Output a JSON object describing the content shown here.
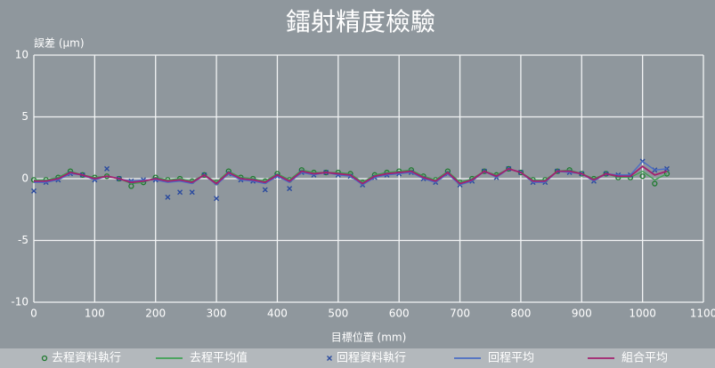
{
  "chart_data": {
    "type": "line",
    "title": "鐳射精度檢驗",
    "y_label": "誤差 (μm)",
    "x_label": "目標位置 (mm)",
    "x": [
      0,
      20,
      40,
      60,
      80,
      100,
      120,
      140,
      160,
      180,
      200,
      220,
      240,
      260,
      280,
      300,
      320,
      340,
      360,
      380,
      400,
      420,
      440,
      460,
      480,
      500,
      520,
      540,
      560,
      580,
      600,
      620,
      640,
      660,
      680,
      700,
      720,
      740,
      760,
      780,
      800,
      820,
      840,
      860,
      880,
      900,
      920,
      940,
      960,
      980,
      1000,
      1020,
      1040
    ],
    "series": [
      {
        "name": "去程資料執行",
        "color": "#1f7a2e",
        "marker": "o",
        "values": [
          -0.1,
          -0.1,
          0.1,
          0.6,
          0.3,
          0.1,
          0.2,
          0,
          -0.6,
          -0.3,
          0.1,
          -0.1,
          0,
          -0.2,
          0.3,
          -0.3,
          0.6,
          0.1,
          0,
          -0.2,
          0.4,
          -0.1,
          0.7,
          0.5,
          0.5,
          0.5,
          0.4,
          -0.3,
          0.3,
          0.5,
          0.6,
          0.7,
          0.2,
          -0.1,
          0.6,
          -0.3,
          0,
          0.6,
          0.3,
          0.8,
          0.5,
          -0.1,
          -0.1,
          0.6,
          0.7,
          0.4,
          0,
          0.4,
          0.1,
          0.1,
          0.2,
          -0.4,
          0.4
        ]
      },
      {
        "name": "去程平均值",
        "color": "#3ea152",
        "marker": "none",
        "values": [
          -0.1,
          -0.1,
          0.1,
          0.6,
          0.3,
          0.1,
          0.2,
          0,
          -0.4,
          -0.3,
          0.1,
          -0.1,
          0,
          -0.2,
          0.3,
          -0.3,
          0.6,
          0.1,
          0,
          -0.2,
          0.4,
          -0.1,
          0.7,
          0.5,
          0.5,
          0.5,
          0.4,
          -0.3,
          0.3,
          0.5,
          0.6,
          0.7,
          0.2,
          -0.1,
          0.6,
          -0.3,
          0,
          0.6,
          0.3,
          0.8,
          0.5,
          -0.1,
          -0.1,
          0.6,
          0.7,
          0.4,
          0,
          0.4,
          0.1,
          0.1,
          0.6,
          -0.1,
          0.4
        ]
      },
      {
        "name": "回程資料執行",
        "color": "#2a4a9e",
        "marker": "x",
        "values": [
          -1,
          -0.3,
          -0.1,
          0.4,
          0.3,
          -0.1,
          0.8,
          0,
          -0.2,
          -0.1,
          -0.1,
          -1.5,
          -1.1,
          -1.1,
          0.3,
          -1.6,
          0.4,
          -0.1,
          -0.2,
          -0.9,
          0.2,
          -0.8,
          0.5,
          0.3,
          0.5,
          0.3,
          0.2,
          -0.5,
          0.1,
          0.3,
          0.4,
          0.5,
          0,
          -0.3,
          0.4,
          -0.5,
          -0.2,
          0.6,
          0.1,
          0.8,
          0.5,
          -0.3,
          -0.3,
          0.6,
          0.5,
          0.4,
          -0.2,
          0.4,
          0.3,
          0.3,
          1.4,
          0.7,
          0.8
        ]
      },
      {
        "name": "回程平均",
        "color": "#4a6cc4",
        "marker": "none",
        "values": [
          -0.3,
          -0.3,
          -0.1,
          0.4,
          0.3,
          -0.1,
          0.2,
          0,
          -0.2,
          -0.1,
          -0.1,
          -0.3,
          -0.2,
          -0.4,
          0.3,
          -0.5,
          0.4,
          -0.1,
          -0.2,
          -0.4,
          0.2,
          -0.3,
          0.5,
          0.3,
          0.5,
          0.3,
          0.2,
          -0.5,
          0.1,
          0.3,
          0.4,
          0.5,
          0,
          -0.3,
          0.4,
          -0.5,
          -0.2,
          0.6,
          0.1,
          0.8,
          0.5,
          -0.3,
          -0.3,
          0.6,
          0.5,
          0.4,
          -0.2,
          0.4,
          0.3,
          0.3,
          1.4,
          0.7,
          0.8
        ]
      },
      {
        "name": "組合平均",
        "color": "#a3206f",
        "marker": "none",
        "values": [
          -0.2,
          -0.2,
          0,
          0.5,
          0.3,
          0,
          0.2,
          0,
          -0.3,
          -0.2,
          0,
          -0.2,
          -0.1,
          -0.3,
          0.3,
          -0.4,
          0.5,
          0,
          -0.1,
          -0.3,
          0.3,
          -0.2,
          0.6,
          0.4,
          0.5,
          0.4,
          0.3,
          -0.4,
          0.2,
          0.4,
          0.5,
          0.6,
          0.1,
          -0.2,
          0.5,
          -0.4,
          -0.1,
          0.6,
          0.2,
          0.8,
          0.5,
          -0.2,
          -0.2,
          0.6,
          0.6,
          0.4,
          -0.1,
          0.4,
          0.2,
          0.2,
          1,
          0.3,
          0.6
        ]
      }
    ],
    "xlim": [
      0,
      1100
    ],
    "xticks": [
      0,
      100,
      200,
      300,
      400,
      500,
      600,
      700,
      800,
      900,
      1000,
      1100
    ],
    "ylim": [
      -10,
      10
    ],
    "yticks": [
      -10,
      -5,
      0,
      5,
      10
    ],
    "grid": true,
    "legend": "bottom"
  }
}
